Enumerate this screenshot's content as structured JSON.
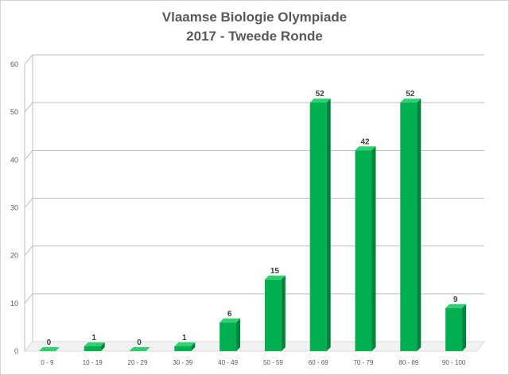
{
  "chart_data": {
    "type": "bar",
    "title_lines": [
      "Vlaamse Biologie Olympiade",
      "2017 - Tweede Ronde"
    ],
    "xlabel": "",
    "ylabel": "",
    "categories": [
      "0 - 9",
      "10 - 19",
      "20 - 29",
      "30 - 39",
      "40 - 49",
      "50 - 59",
      "60 - 69",
      "70 - 79",
      "80 - 89",
      "90 - 100"
    ],
    "values": [
      0,
      1,
      0,
      1,
      6,
      15,
      52,
      42,
      52,
      9
    ],
    "ylim": [
      0,
      60
    ],
    "yticks": [
      0,
      10,
      20,
      30,
      40,
      50,
      60
    ],
    "grid": true,
    "legend": "none",
    "bar_style": "3d",
    "colors": {
      "bar_front": "#00b050",
      "bar_top": "#2fd06f",
      "bar_side": "#00843c",
      "grid": "#bfbfbf",
      "floor": "#d9d9d9",
      "text": "#595959"
    }
  }
}
